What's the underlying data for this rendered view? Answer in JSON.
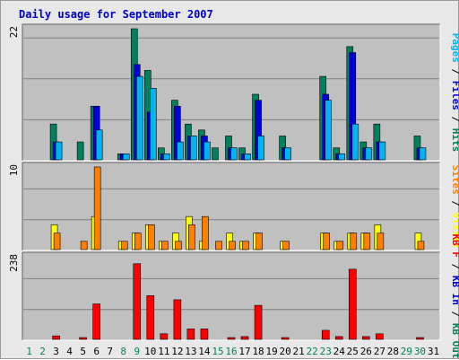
{
  "chart_data": {
    "type": "bar",
    "title": "Daily usage for September 2007",
    "days": [
      "1",
      "2",
      "3",
      "4",
      "5",
      "6",
      "7",
      "8",
      "9",
      "10",
      "11",
      "12",
      "13",
      "14",
      "15",
      "16",
      "17",
      "18",
      "19",
      "20",
      "21",
      "22",
      "23",
      "24",
      "25",
      "26",
      "27",
      "28",
      "29",
      "30",
      "31"
    ],
    "weekend_days": [
      "1",
      "2",
      "8",
      "9",
      "15",
      "16",
      "22",
      "23",
      "29",
      "30"
    ],
    "panels": [
      {
        "id": "top",
        "ymax_label": "22",
        "ymax": 22,
        "series": [
          {
            "name": "Hits",
            "color": "#00805c",
            "values": [
              0,
              0,
              6,
              0,
              3,
              9,
              0,
              1,
              22,
              15,
              2,
              10,
              6,
              5,
              2,
              4,
              2,
              11,
              0,
              4,
              0,
              0,
              14,
              2,
              19,
              3,
              6,
              0,
              0,
              4,
              0
            ]
          },
          {
            "name": "Files",
            "color": "#0000d8",
            "values": [
              0,
              0,
              3,
              0,
              0,
              9,
              0,
              1,
              16,
              8,
              1,
              9,
              4,
              4,
              0,
              2,
              1,
              10,
              0,
              2,
              0,
              0,
              11,
              1,
              18,
              2,
              3,
              0,
              0,
              2,
              0
            ]
          },
          {
            "name": "Pages",
            "color": "#00b4f0",
            "values": [
              0,
              0,
              3,
              0,
              0,
              5,
              0,
              1,
              14,
              12,
              1,
              3,
              4,
              3,
              0,
              2,
              1,
              4,
              0,
              2,
              0,
              0,
              10,
              1,
              6,
              2,
              3,
              0,
              0,
              2,
              0
            ]
          }
        ],
        "right_label": [
          {
            "text": "Pages",
            "color": "#00b4f0"
          },
          {
            "text": " / ",
            "color": "#000000"
          },
          {
            "text": "Files",
            "color": "#0000d8"
          },
          {
            "text": " / ",
            "color": "#000000"
          },
          {
            "text": "Hits",
            "color": "#00805c"
          }
        ]
      },
      {
        "id": "middle",
        "ymax_label": "10",
        "ymax": 10,
        "series": [
          {
            "name": "Visits",
            "color": "#ffff00",
            "values": [
              0,
              0,
              3,
              0,
              0,
              4,
              0,
              1,
              2,
              3,
              1,
              2,
              4,
              1,
              0,
              2,
              1,
              2,
              0,
              1,
              0,
              0,
              2,
              1,
              2,
              2,
              3,
              0,
              0,
              2,
              0
            ]
          },
          {
            "name": "Sites",
            "color": "#ff8000",
            "values": [
              0,
              0,
              2,
              0,
              1,
              10,
              0,
              1,
              2,
              3,
              1,
              1,
              3,
              4,
              1,
              1,
              1,
              2,
              0,
              1,
              0,
              0,
              2,
              1,
              2,
              2,
              2,
              0,
              0,
              1,
              0
            ]
          }
        ],
        "right_label": [
          {
            "text": "Sites",
            "color": "#ff8000"
          },
          {
            "text": " / ",
            "color": "#000000"
          },
          {
            "text": "Visits",
            "color": "#ffff00"
          }
        ]
      },
      {
        "id": "bottom",
        "ymax_label": "238",
        "ymax": 238,
        "series": [
          {
            "name": "KBytes Out",
            "color": "#ff0000",
            "values": [
              0,
              0,
              10,
              0,
              3,
              102,
              0,
              0,
              218,
              126,
              16,
              114,
              30,
              30,
              0,
              3,
              8,
              98,
              0,
              3,
              0,
              0,
              26,
              8,
              202,
              8,
              16,
              0,
              0,
              3,
              0
            ]
          }
        ],
        "right_label": [
          {
            "text": "KB F",
            "color": "#ff0000"
          },
          {
            "text": " / ",
            "color": "#000000"
          },
          {
            "text": "KB In",
            "color": "#0000d8"
          },
          {
            "text": " / ",
            "color": "#000000"
          },
          {
            "text": "KB Out",
            "color": "#00805c"
          }
        ]
      }
    ],
    "grid": true
  }
}
